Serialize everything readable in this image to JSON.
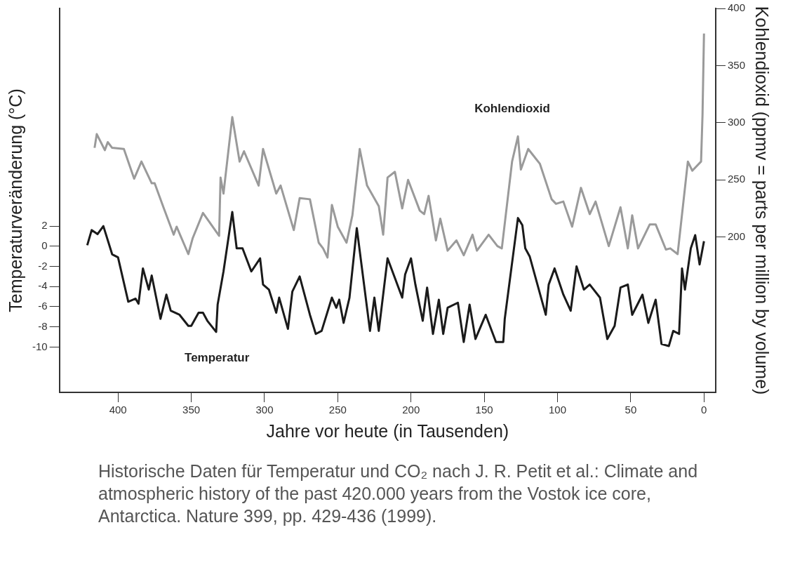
{
  "chart_data": {
    "type": "line",
    "xlabel": "Jahre vor heute (in Tausenden)",
    "ylabel": "Temperaturveränderung (°C)",
    "y2label": "Kohlendioxid (ppmv = parts per million by volume)",
    "xlim": [
      440,
      -8
    ],
    "xticks": [
      400,
      350,
      300,
      250,
      200,
      150,
      100,
      50,
      0
    ],
    "ylim": [
      -14.5,
      23.6
    ],
    "yticks": [
      -10,
      -8,
      -6,
      -4,
      -2,
      0,
      2
    ],
    "y2lim": [
      64,
      400
    ],
    "y2ticks": [
      200,
      250,
      300,
      350,
      400
    ],
    "grid": false,
    "legend": false,
    "marker": "none",
    "line_style": "solid",
    "series": [
      {
        "name": "Kohlendioxid",
        "color": "#9a9a9a",
        "axis": "y2",
        "x": [
          416,
          414.5,
          409,
          407,
          404,
          396,
          389,
          384,
          377,
          375,
          369,
          362,
          360,
          352,
          349,
          342,
          331,
          330,
          328,
          322,
          317,
          314,
          304,
          301,
          292,
          289,
          280,
          276,
          269,
          263,
          260,
          257,
          254,
          250,
          244,
          240,
          235,
          230,
          222,
          219,
          216,
          211,
          206,
          202,
          194,
          191,
          188,
          183,
          180,
          175,
          169,
          164,
          158,
          155,
          147,
          141,
          138,
          131,
          127,
          125,
          120,
          112,
          104,
          101,
          96,
          90,
          84,
          78,
          74,
          65,
          57,
          52,
          49,
          45,
          37,
          33,
          26,
          23,
          18,
          11,
          8,
          2,
          1,
          0
        ],
        "values": [
          278,
          290,
          276,
          283,
          278,
          277,
          251,
          266,
          247,
          247,
          226,
          202,
          209,
          185,
          199,
          221,
          201,
          252,
          238,
          305,
          266,
          275,
          245,
          277,
          238,
          245,
          206,
          234,
          233,
          195,
          190,
          182,
          228,
          209,
          195,
          219,
          277,
          245,
          227,
          202,
          252,
          257,
          225,
          250,
          223,
          220,
          236,
          197,
          216,
          188,
          197,
          184,
          202,
          188,
          202,
          192,
          190,
          266,
          288,
          259,
          277,
          264,
          233,
          229,
          231,
          209,
          243,
          220,
          231,
          192,
          226,
          190,
          219,
          190,
          211,
          211,
          189,
          190,
          185,
          266,
          258,
          266,
          307,
          378
        ]
      },
      {
        "name": "Temperatur",
        "color": "#1a1a1a",
        "x": [
          421,
          418,
          414,
          410,
          404,
          400,
          393,
          388,
          386,
          383,
          379,
          377,
          371,
          367,
          364,
          358,
          352,
          350,
          345,
          342,
          339,
          333,
          332,
          328,
          322,
          319,
          315,
          309,
          303,
          301,
          297,
          292,
          290,
          284,
          281,
          276,
          269,
          265,
          261,
          254,
          251,
          249,
          246,
          242,
          237,
          228,
          225,
          222,
          216,
          206,
          204,
          200,
          197,
          192,
          189,
          185,
          181,
          178,
          175,
          168,
          164,
          160,
          156,
          149,
          142,
          137,
          136,
          127,
          124,
          122,
          119,
          108,
          106,
          102,
          96,
          91,
          87,
          82,
          78,
          71,
          66,
          61,
          57,
          52,
          49,
          42,
          38,
          33,
          29,
          24,
          21,
          17,
          15,
          13,
          9,
          6,
          3,
          0
        ],
        "values": [
          0.1,
          1.6,
          1.2,
          2.0,
          -0.8,
          -1.1,
          -5.5,
          -5.2,
          -5.7,
          -2.2,
          -4.3,
          -2.9,
          -7.2,
          -4.8,
          -6.4,
          -6.8,
          -7.9,
          -7.9,
          -6.6,
          -6.6,
          -7.4,
          -8.5,
          -5.8,
          -2.5,
          3.4,
          -0.2,
          -0.2,
          -2.5,
          -1.2,
          -3.8,
          -4.3,
          -6.6,
          -5.1,
          -8.2,
          -4.5,
          -3.0,
          -6.8,
          -8.7,
          -8.4,
          -5.1,
          -6.1,
          -5.3,
          -7.6,
          -5.1,
          1.8,
          -8.4,
          -5.1,
          -8.4,
          -1.2,
          -5.1,
          -2.8,
          -1.2,
          -3.8,
          -7.4,
          -4.1,
          -8.7,
          -5.3,
          -8.7,
          -6.1,
          -5.6,
          -9.5,
          -5.8,
          -9.2,
          -6.8,
          -9.5,
          -9.5,
          -7.2,
          2.8,
          2.1,
          -0.2,
          -1.0,
          -6.8,
          -3.8,
          -2.2,
          -4.8,
          -6.4,
          -2.0,
          -4.3,
          -3.8,
          -5.1,
          -9.2,
          -7.9,
          -4.1,
          -3.8,
          -6.8,
          -4.8,
          -7.6,
          -5.3,
          -9.7,
          -9.9,
          -8.4,
          -8.7,
          -2.2,
          -4.3,
          -0.2,
          1.1,
          -1.8,
          0.5
        ]
      }
    ],
    "annotations": [
      "Historische Daten für Temperatur und CO₂ nach J. R. Petit et al.: Climate and atmospheric history of the past 420.000 years from the Vostok ice core, Antarctica. Nature 399, pp. 429-436 (1999)."
    ]
  }
}
